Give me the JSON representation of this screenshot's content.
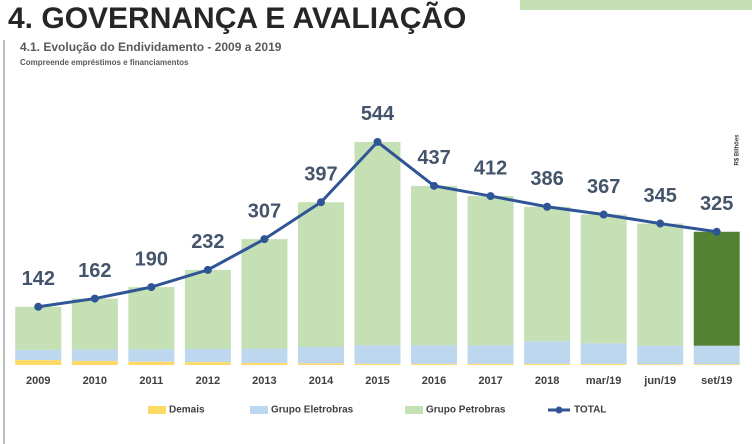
{
  "header": {
    "title": "4. GOVERNANÇA E AVALIAÇÃO"
  },
  "chart_data": {
    "type": "bar",
    "stacked": true,
    "title": "4.1. Evolução do Endividamento - 2009 a 2019",
    "subtitle": "Compreende empréstimos e financiamentos",
    "unit_label": "R$ Bilhões",
    "categories": [
      "2009",
      "2010",
      "2011",
      "2012",
      "2013",
      "2014",
      "2015",
      "2016",
      "2017",
      "2018",
      "mar/19",
      "jun/19",
      "set/19"
    ],
    "ylim": [
      0,
      600
    ],
    "legend": "bottom",
    "series": [
      {
        "name": "Demais",
        "color": "#ffd966",
        "values": [
          12,
          10,
          8,
          7,
          5,
          4,
          3,
          3,
          3,
          3,
          3,
          2,
          2
        ]
      },
      {
        "name": "Grupo Eletrobras",
        "color": "#bdd7ee",
        "values": [
          25,
          28,
          30,
          32,
          35,
          40,
          45,
          45,
          45,
          55,
          50,
          45,
          45
        ]
      },
      {
        "name": "Grupo Petrobras",
        "color": "#c5e0b4",
        "point_colors": {
          "12": "#548235"
        },
        "values": [
          105,
          124,
          152,
          193,
          267,
          353,
          496,
          389,
          364,
          328,
          314,
          298,
          278
        ]
      },
      {
        "name": "TOTAL",
        "type": "line",
        "color": "#2f5597",
        "values": [
          142,
          162,
          190,
          232,
          307,
          397,
          544,
          437,
          412,
          386,
          367,
          345,
          325
        ]
      }
    ]
  }
}
